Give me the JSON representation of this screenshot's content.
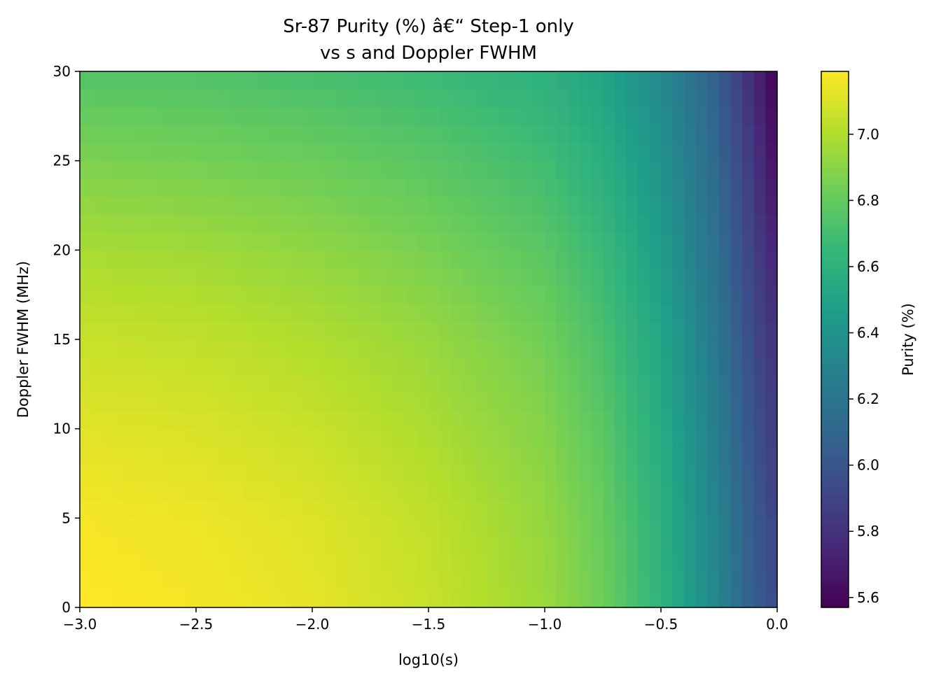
{
  "chart_data": {
    "type": "heatmap",
    "title_lines": [
      "Sr-87 Purity (%) â€“ Step-1 only",
      "vs s and Doppler FWHM"
    ],
    "xlabel": "log10(s)",
    "ylabel": "Doppler FWHM (MHz)",
    "xlim": [
      -3.0,
      0.0
    ],
    "ylim": [
      0,
      30
    ],
    "xticks": [
      -3.0,
      -2.5,
      -2.0,
      -1.5,
      -1.0,
      -0.5,
      0.0
    ],
    "xtick_labels": [
      "−3.0",
      "−2.5",
      "−2.0",
      "−1.5",
      "−1.0",
      "−0.5",
      "0.0"
    ],
    "yticks": [
      0,
      5,
      10,
      15,
      20,
      25,
      30
    ],
    "ytick_labels": [
      "0",
      "5",
      "10",
      "15",
      "20",
      "25",
      "30"
    ],
    "colormap": "viridis",
    "colorbar": {
      "label": "Purity (%)",
      "vmin": 5.57,
      "vmax": 7.19,
      "ticks": [
        5.6,
        5.8,
        6.0,
        6.2,
        6.4,
        6.6,
        6.8,
        7.0
      ],
      "tick_labels": [
        "5.6",
        "5.8",
        "6.0",
        "6.2",
        "6.4",
        "6.6",
        "6.8",
        "7.0"
      ]
    },
    "grid": {
      "x": [
        -3.0,
        -2.5,
        -2.0,
        -1.5,
        -1.0,
        -0.75,
        -0.5,
        -0.25,
        -0.1,
        0.0
      ],
      "y": [
        0,
        5,
        10,
        15,
        20,
        25,
        30
      ],
      "z": [
        [
          7.19,
          7.17,
          7.13,
          7.06,
          6.95,
          6.83,
          6.62,
          6.3,
          6.05,
          5.95
        ],
        [
          7.17,
          7.15,
          7.11,
          7.04,
          6.93,
          6.81,
          6.6,
          6.28,
          6.02,
          5.9
        ],
        [
          7.12,
          7.1,
          7.06,
          6.99,
          6.89,
          6.77,
          6.56,
          6.24,
          5.98,
          5.85
        ],
        [
          7.06,
          7.04,
          7.0,
          6.94,
          6.84,
          6.72,
          6.52,
          6.2,
          5.93,
          5.8
        ],
        [
          6.98,
          6.96,
          6.92,
          6.86,
          6.77,
          6.66,
          6.46,
          6.15,
          5.88,
          5.72
        ],
        [
          6.87,
          6.85,
          6.82,
          6.77,
          6.69,
          6.58,
          6.4,
          6.1,
          5.82,
          5.63
        ],
        [
          6.75,
          6.74,
          6.71,
          6.67,
          6.6,
          6.51,
          6.33,
          6.05,
          5.75,
          5.57
        ]
      ]
    }
  }
}
